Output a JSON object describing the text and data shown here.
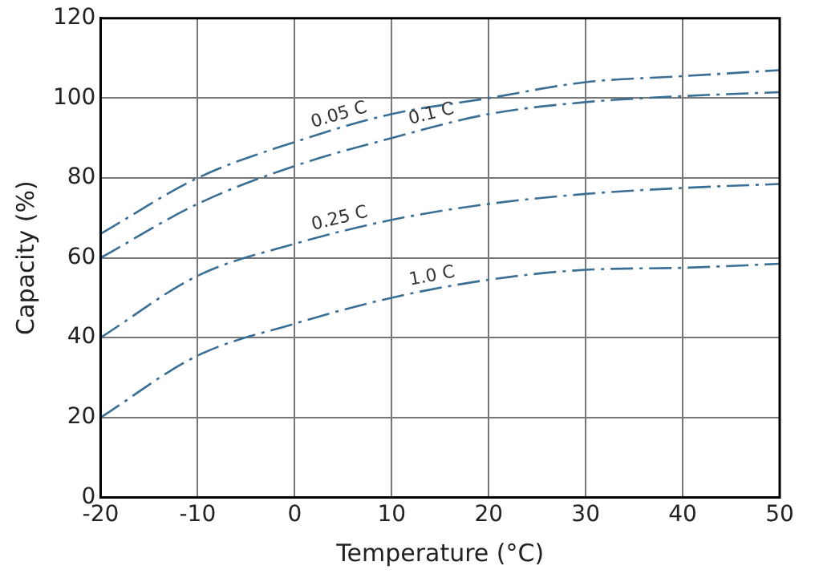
{
  "chart_data": {
    "type": "line",
    "xlabel": "Temperature (°C)",
    "ylabel": "Capacity (%)",
    "x": [
      -20,
      -10,
      0,
      10,
      20,
      30,
      40,
      50
    ],
    "series": [
      {
        "name": "0.05 C",
        "color": "#3a6f95",
        "values": [
          66,
          80,
          89,
          96,
          100,
          104,
          105.5,
          107
        ]
      },
      {
        "name": "0.1 C",
        "color": "#3a6f95",
        "values": [
          60,
          73.5,
          83,
          90,
          96,
          99,
          100.5,
          101.5
        ]
      },
      {
        "name": "0.25 C",
        "color": "#3a6f95",
        "values": [
          40,
          55.5,
          63.5,
          69.5,
          73.5,
          76,
          77.5,
          78.5
        ]
      },
      {
        "name": "1.0 C",
        "color": "#3a6f95",
        "values": [
          20,
          35.5,
          43.5,
          50,
          54.5,
          57,
          57.5,
          58.5
        ]
      }
    ],
    "xlim": [
      -20,
      50
    ],
    "xticks": [
      -20,
      -10,
      0,
      10,
      20,
      30,
      40,
      50
    ],
    "ylim": [
      0,
      120
    ],
    "yticks": [
      0,
      20,
      40,
      60,
      80,
      100,
      120
    ],
    "grid": true,
    "legend": false,
    "marker": "none",
    "line_style": "dashed"
  }
}
